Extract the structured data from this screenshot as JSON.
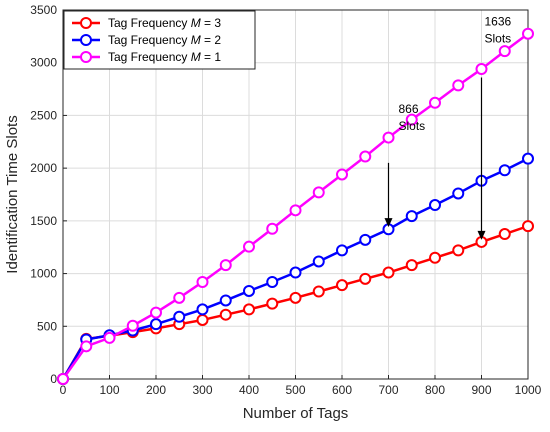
{
  "chart_data": {
    "type": "line",
    "xlabel": "Number of Tags",
    "ylabel": "Identification Time Slots",
    "xlim": [
      0,
      1000
    ],
    "ylim": [
      0,
      3500
    ],
    "xticks": [
      0,
      100,
      200,
      300,
      400,
      500,
      600,
      700,
      800,
      900,
      1000
    ],
    "yticks": [
      0,
      500,
      1000,
      1500,
      2000,
      2500,
      3000,
      3500
    ],
    "grid": true,
    "legend_position": "top-left",
    "x": [
      0,
      50,
      100,
      150,
      200,
      250,
      300,
      350,
      400,
      450,
      500,
      550,
      600,
      650,
      700,
      750,
      800,
      850,
      900,
      950,
      1000
    ],
    "series": [
      {
        "name_prefix": "Tag Frequency ",
        "name_var": "M",
        "name_suffix": " = 3",
        "color": "#ff0000",
        "values": [
          0,
          380,
          410,
          445,
          480,
          520,
          560,
          610,
          660,
          715,
          770,
          830,
          890,
          950,
          1010,
          1080,
          1150,
          1220,
          1300,
          1375,
          1450
        ]
      },
      {
        "name_prefix": "Tag Frequency ",
        "name_var": "M",
        "name_suffix": " = 2",
        "color": "#0000ff",
        "values": [
          0,
          375,
          415,
          460,
          520,
          590,
          660,
          745,
          835,
          920,
          1010,
          1115,
          1220,
          1320,
          1420,
          1545,
          1650,
          1760,
          1880,
          1980,
          2090
        ]
      },
      {
        "name_prefix": "Tag Frequency ",
        "name_var": "M",
        "name_suffix": " = 1",
        "color": "#ff00ff",
        "values": [
          0,
          310,
          390,
          505,
          630,
          770,
          920,
          1080,
          1255,
          1425,
          1600,
          1770,
          1940,
          2110,
          2290,
          2460,
          2620,
          2785,
          2940,
          3110,
          3275
        ]
      }
    ],
    "annotations": [
      {
        "line1": "866",
        "line2": "Slots",
        "x": 700,
        "y_start": 2050,
        "y_end": 1440
      },
      {
        "line1": "1636",
        "line2": "Slots",
        "x": 900,
        "y_start": 2860,
        "y_end": 1320
      }
    ]
  }
}
